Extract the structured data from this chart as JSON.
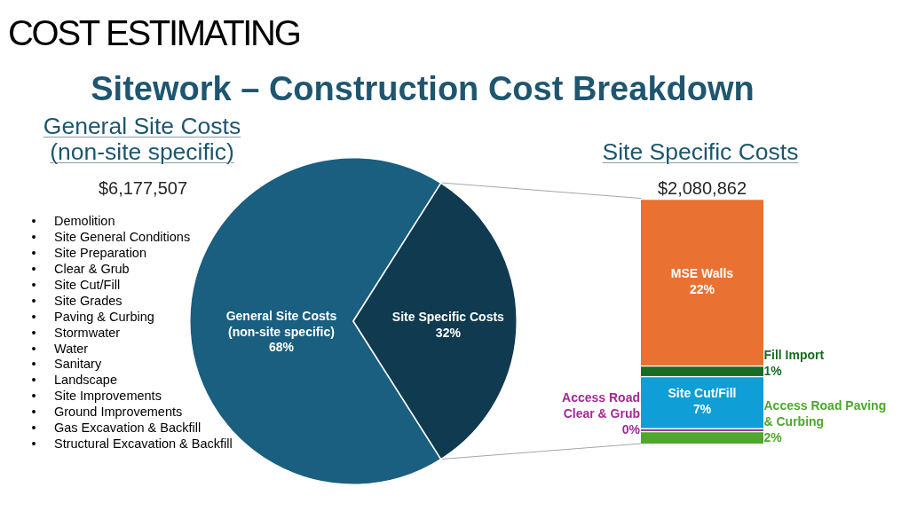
{
  "chart_data": [
    {
      "type": "other",
      "title": "COST ESTIMATING",
      "subtitle": "Sitework – Construction Cost Breakdown"
    },
    {
      "type": "other",
      "title": "General Site Costs (non-site specific)",
      "subtitle": "$6,177,507",
      "annotations": [
        "•\tDemolition",
        "•\tSite General Conditions",
        "•\tSite Preparation",
        "•\tClear & Grub",
        "•\tSite Cut/Fill",
        "•\tSite Grades",
        "•\tPaving & Curbing",
        "•\tStormwater",
        "•\tWater",
        "•\tSanitary",
        "•\tLandscape",
        "•\tSite Improvements",
        "•\tGround Improvements",
        "•\tGas Excavation & Backfill",
        "•\tStructural Excavation & Backfill"
      ]
    },
    {
      "type": "pie",
      "categories": [
        "General Site Costs (non-site specific)",
        "Site Specific Costs"
      ],
      "values": [
        68,
        32
      ],
      "colors": [
        "#1a5f80",
        "#0f3a4f"
      ],
      "value_labels": [
        "68%",
        "32%"
      ]
    },
    {
      "type": "bar",
      "title": "Site Specific Costs",
      "subtitle": "$2,080,862",
      "stacked": true,
      "categories": [
        null
      ],
      "series": [
        {
          "name": "Access Road Paving & Curbing",
          "color": "#4ea72e",
          "values": [
            1.6
          ],
          "value_labels": [
            "2%"
          ]
        },
        {
          "name": "Access Road Clear & Grub",
          "color": "#a02b93",
          "values": [
            0.4
          ],
          "value_labels": [
            "0%"
          ]
        },
        {
          "name": "Site Cut/Fill",
          "color": "#0f9ed5",
          "values": [
            6.8
          ],
          "value_labels": [
            "7%"
          ]
        },
        {
          "name": "Fill Import",
          "color": "#196b24",
          "values": [
            1.4
          ],
          "value_labels": [
            "1%"
          ]
        },
        {
          "name": "MSE Walls",
          "color": "#e97132",
          "values": [
            21.8
          ],
          "value_labels": [
            "22%"
          ]
        }
      ]
    }
  ]
}
